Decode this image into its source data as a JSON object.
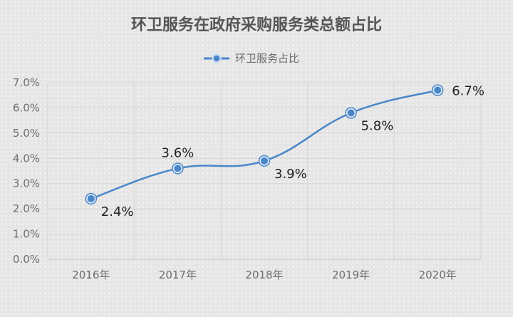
{
  "chart_data": {
    "type": "line",
    "title": "环卫服务在政府采购服务类总额占比",
    "categories": [
      "2016年",
      "2017年",
      "2018年",
      "2019年",
      "2020年"
    ],
    "series": [
      {
        "name": "环卫服务占比",
        "values": [
          2.4,
          3.6,
          3.9,
          5.8,
          6.7
        ],
        "labels": [
          "2.4%",
          "3.6%",
          "3.9%",
          "5.8%",
          "6.7%"
        ],
        "color": "#4a86c8",
        "smooth": true
      }
    ],
    "yticks": [
      "0.0%",
      "1.0%",
      "2.0%",
      "3.0%",
      "4.0%",
      "5.0%",
      "6.0%",
      "7.0%"
    ],
    "ylim": [
      0,
      7
    ],
    "xlabel": "",
    "ylabel": "",
    "grid": true,
    "legend": "top-center"
  }
}
